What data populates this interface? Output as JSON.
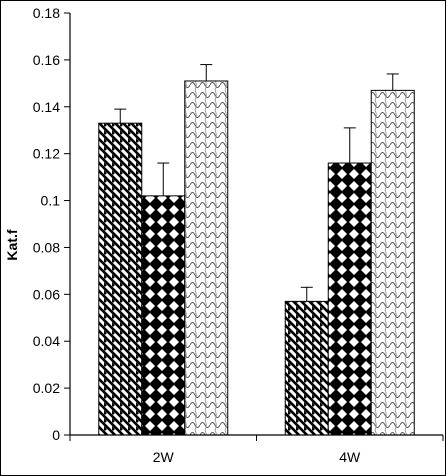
{
  "chart_data": {
    "type": "bar",
    "title": "",
    "xlabel": "",
    "ylabel": "Kat.f",
    "ylim": [
      0,
      0.18
    ],
    "yticks": [
      0,
      0.02,
      0.04,
      0.06,
      0.08,
      0.1,
      0.12,
      0.14,
      0.16,
      0.18
    ],
    "ytick_labels": [
      "0",
      "0.02",
      "0.04",
      "0.06",
      "0.08",
      "0.1",
      "0.12",
      "0.14",
      "0.16",
      "0.18"
    ],
    "categories": [
      "2W",
      "4W"
    ],
    "grid": false,
    "legend": "none",
    "series": [
      {
        "pattern": "diagonal-stripes",
        "values": [
          0.133,
          0.057
        ],
        "errors": [
          0.006,
          0.006
        ]
      },
      {
        "pattern": "black-checker",
        "values": [
          0.102,
          0.116
        ],
        "errors": [
          0.014,
          0.015
        ]
      },
      {
        "pattern": "light-wave",
        "values": [
          0.151,
          0.147
        ],
        "errors": [
          0.007,
          0.007
        ]
      }
    ]
  }
}
